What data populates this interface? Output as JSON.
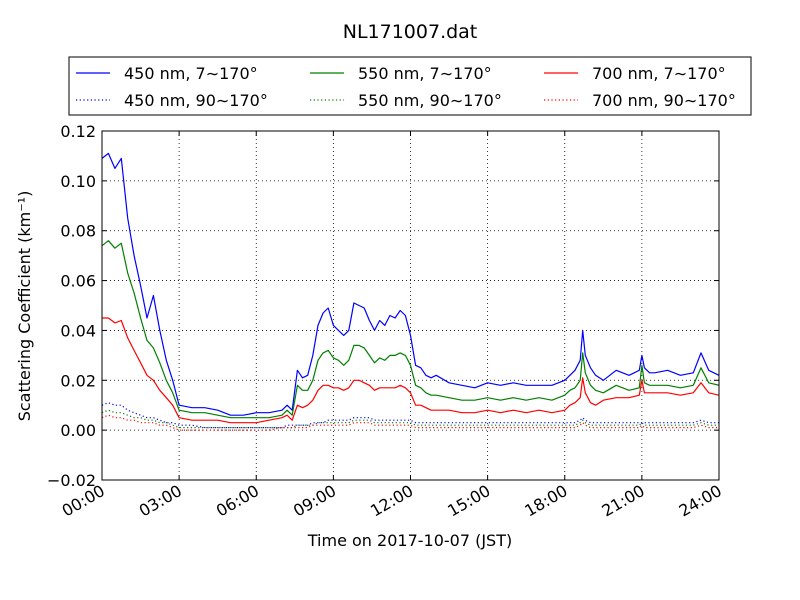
{
  "chart_data": {
    "type": "line",
    "title": "NL171007.dat",
    "xlabel": "Time on 2017-10-07 (JST)",
    "ylabel": "Scattering Coefficient (km⁻¹)",
    "x_unit": "hour",
    "xlim": [
      0,
      24
    ],
    "ylim": [
      -0.02,
      0.12
    ],
    "x_ticks": [
      0,
      3,
      6,
      9,
      12,
      15,
      18,
      21,
      24
    ],
    "x_tick_labels": [
      "00:00",
      "03:00",
      "06:00",
      "09:00",
      "12:00",
      "15:00",
      "18:00",
      "21:00",
      "24:00"
    ],
    "y_ticks": [
      -0.02,
      0.0,
      0.02,
      0.04,
      0.06,
      0.08,
      0.1,
      0.12
    ],
    "y_tick_labels": [
      "−0.02",
      "0.00",
      "0.02",
      "0.04",
      "0.06",
      "0.08",
      "0.10",
      "0.12"
    ],
    "grid": true,
    "legend_position": "top",
    "x": [
      0.0,
      0.25,
      0.5,
      0.75,
      1.0,
      1.25,
      1.5,
      1.75,
      2.0,
      2.25,
      2.5,
      2.75,
      3.0,
      3.5,
      4.0,
      4.5,
      5.0,
      5.5,
      6.0,
      6.5,
      7.0,
      7.2,
      7.4,
      7.6,
      7.8,
      8.0,
      8.2,
      8.4,
      8.6,
      8.8,
      9.0,
      9.2,
      9.4,
      9.6,
      9.8,
      10.0,
      10.2,
      10.4,
      10.6,
      10.8,
      11.0,
      11.2,
      11.4,
      11.6,
      11.8,
      12.0,
      12.2,
      12.4,
      12.6,
      12.8,
      13.0,
      13.5,
      14.0,
      14.5,
      15.0,
      15.5,
      16.0,
      16.5,
      17.0,
      17.5,
      18.0,
      18.2,
      18.4,
      18.6,
      18.7,
      18.8,
      19.0,
      19.2,
      19.5,
      20.0,
      20.5,
      20.9,
      21.0,
      21.1,
      21.3,
      21.5,
      22.0,
      22.5,
      23.0,
      23.3,
      23.6,
      24.0
    ],
    "series": [
      {
        "name": "450 nm, 7∼170°",
        "color": "#0000ff",
        "style": "solid",
        "values": [
          0.109,
          0.111,
          0.105,
          0.109,
          0.085,
          0.07,
          0.058,
          0.045,
          0.054,
          0.04,
          0.028,
          0.02,
          0.01,
          0.009,
          0.009,
          0.008,
          0.006,
          0.006,
          0.007,
          0.007,
          0.008,
          0.01,
          0.008,
          0.024,
          0.021,
          0.022,
          0.03,
          0.042,
          0.047,
          0.049,
          0.042,
          0.04,
          0.038,
          0.04,
          0.051,
          0.05,
          0.049,
          0.044,
          0.04,
          0.044,
          0.042,
          0.046,
          0.045,
          0.048,
          0.046,
          0.038,
          0.026,
          0.025,
          0.022,
          0.021,
          0.022,
          0.019,
          0.018,
          0.017,
          0.019,
          0.018,
          0.019,
          0.018,
          0.018,
          0.018,
          0.02,
          0.022,
          0.024,
          0.028,
          0.04,
          0.03,
          0.025,
          0.022,
          0.02,
          0.024,
          0.022,
          0.024,
          0.03,
          0.025,
          0.023,
          0.023,
          0.024,
          0.022,
          0.023,
          0.031,
          0.024,
          0.022
        ]
      },
      {
        "name": "450 nm, 90∼170°",
        "color": "#0000ff",
        "style": "dotted",
        "values": [
          0.01,
          0.011,
          0.01,
          0.01,
          0.008,
          0.007,
          0.006,
          0.005,
          0.005,
          0.004,
          0.003,
          0.003,
          0.002,
          0.002,
          0.001,
          0.001,
          0.001,
          0.001,
          0.001,
          0.001,
          0.001,
          0.002,
          0.002,
          0.002,
          0.002,
          0.002,
          0.003,
          0.003,
          0.003,
          0.004,
          0.004,
          0.004,
          0.004,
          0.004,
          0.005,
          0.005,
          0.005,
          0.005,
          0.004,
          0.004,
          0.004,
          0.004,
          0.004,
          0.004,
          0.004,
          0.004,
          0.003,
          0.003,
          0.003,
          0.003,
          0.003,
          0.003,
          0.003,
          0.003,
          0.003,
          0.003,
          0.003,
          0.003,
          0.003,
          0.003,
          0.003,
          0.003,
          0.003,
          0.004,
          0.005,
          0.004,
          0.003,
          0.003,
          0.003,
          0.003,
          0.003,
          0.003,
          0.003,
          0.003,
          0.003,
          0.003,
          0.003,
          0.003,
          0.003,
          0.004,
          0.003,
          0.003
        ]
      },
      {
        "name": "550 nm, 7∼170°",
        "color": "#008000",
        "style": "solid",
        "values": [
          0.074,
          0.076,
          0.073,
          0.075,
          0.063,
          0.055,
          0.045,
          0.036,
          0.033,
          0.027,
          0.02,
          0.015,
          0.008,
          0.007,
          0.007,
          0.006,
          0.005,
          0.005,
          0.005,
          0.005,
          0.006,
          0.008,
          0.006,
          0.018,
          0.016,
          0.016,
          0.02,
          0.028,
          0.031,
          0.032,
          0.029,
          0.028,
          0.026,
          0.028,
          0.034,
          0.034,
          0.033,
          0.03,
          0.027,
          0.029,
          0.028,
          0.03,
          0.03,
          0.031,
          0.03,
          0.026,
          0.018,
          0.017,
          0.015,
          0.014,
          0.014,
          0.013,
          0.012,
          0.012,
          0.013,
          0.012,
          0.013,
          0.012,
          0.013,
          0.012,
          0.014,
          0.016,
          0.017,
          0.02,
          0.031,
          0.023,
          0.018,
          0.016,
          0.015,
          0.018,
          0.016,
          0.017,
          0.026,
          0.019,
          0.018,
          0.018,
          0.018,
          0.017,
          0.018,
          0.025,
          0.019,
          0.018
        ]
      },
      {
        "name": "550 nm, 90∼170°",
        "color": "#008000",
        "style": "dotted",
        "values": [
          0.007,
          0.008,
          0.007,
          0.007,
          0.006,
          0.005,
          0.005,
          0.004,
          0.004,
          0.003,
          0.003,
          0.002,
          0.001,
          0.001,
          0.001,
          0.001,
          0.001,
          0.001,
          0.001,
          0.001,
          0.001,
          0.001,
          0.001,
          0.002,
          0.002,
          0.002,
          0.002,
          0.003,
          0.003,
          0.003,
          0.003,
          0.003,
          0.003,
          0.003,
          0.004,
          0.004,
          0.004,
          0.004,
          0.003,
          0.003,
          0.003,
          0.003,
          0.003,
          0.003,
          0.003,
          0.003,
          0.002,
          0.002,
          0.002,
          0.002,
          0.002,
          0.002,
          0.002,
          0.002,
          0.002,
          0.002,
          0.002,
          0.002,
          0.002,
          0.002,
          0.002,
          0.002,
          0.002,
          0.003,
          0.004,
          0.003,
          0.002,
          0.002,
          0.002,
          0.002,
          0.002,
          0.002,
          0.003,
          0.002,
          0.002,
          0.002,
          0.002,
          0.002,
          0.002,
          0.003,
          0.002,
          0.002
        ]
      },
      {
        "name": "700 nm, 7∼170°",
        "color": "#ff0000",
        "style": "solid",
        "values": [
          0.045,
          0.045,
          0.043,
          0.044,
          0.037,
          0.032,
          0.027,
          0.022,
          0.02,
          0.016,
          0.013,
          0.01,
          0.005,
          0.004,
          0.004,
          0.004,
          0.003,
          0.003,
          0.003,
          0.004,
          0.005,
          0.006,
          0.004,
          0.01,
          0.009,
          0.01,
          0.012,
          0.016,
          0.018,
          0.018,
          0.017,
          0.017,
          0.016,
          0.017,
          0.02,
          0.02,
          0.019,
          0.018,
          0.016,
          0.017,
          0.017,
          0.017,
          0.017,
          0.018,
          0.017,
          0.015,
          0.01,
          0.01,
          0.009,
          0.008,
          0.008,
          0.008,
          0.007,
          0.007,
          0.008,
          0.007,
          0.008,
          0.007,
          0.008,
          0.007,
          0.008,
          0.01,
          0.011,
          0.013,
          0.021,
          0.015,
          0.011,
          0.01,
          0.012,
          0.013,
          0.013,
          0.014,
          0.02,
          0.015,
          0.015,
          0.015,
          0.015,
          0.014,
          0.015,
          0.019,
          0.015,
          0.014
        ]
      },
      {
        "name": "700 nm, 90∼170°",
        "color": "#ff0000",
        "style": "dotted",
        "values": [
          0.005,
          0.006,
          0.005,
          0.005,
          0.004,
          0.004,
          0.003,
          0.003,
          0.003,
          0.002,
          0.002,
          0.001,
          0.0,
          0.0,
          0.0,
          0.0,
          0.0,
          0.0,
          0.0,
          0.0,
          0.001,
          0.001,
          0.001,
          0.001,
          0.001,
          0.001,
          0.002,
          0.002,
          0.002,
          0.002,
          0.002,
          0.002,
          0.002,
          0.002,
          0.003,
          0.003,
          0.003,
          0.003,
          0.002,
          0.002,
          0.002,
          0.002,
          0.002,
          0.002,
          0.002,
          0.002,
          0.001,
          0.001,
          0.001,
          0.001,
          0.001,
          0.001,
          0.001,
          0.001,
          0.001,
          0.001,
          0.001,
          0.001,
          0.001,
          0.001,
          0.001,
          0.001,
          0.001,
          0.002,
          0.003,
          0.002,
          0.001,
          0.001,
          0.001,
          0.001,
          0.001,
          0.001,
          0.002,
          0.001,
          0.001,
          0.001,
          0.001,
          0.001,
          0.001,
          0.002,
          0.001,
          0.001
        ]
      }
    ]
  }
}
